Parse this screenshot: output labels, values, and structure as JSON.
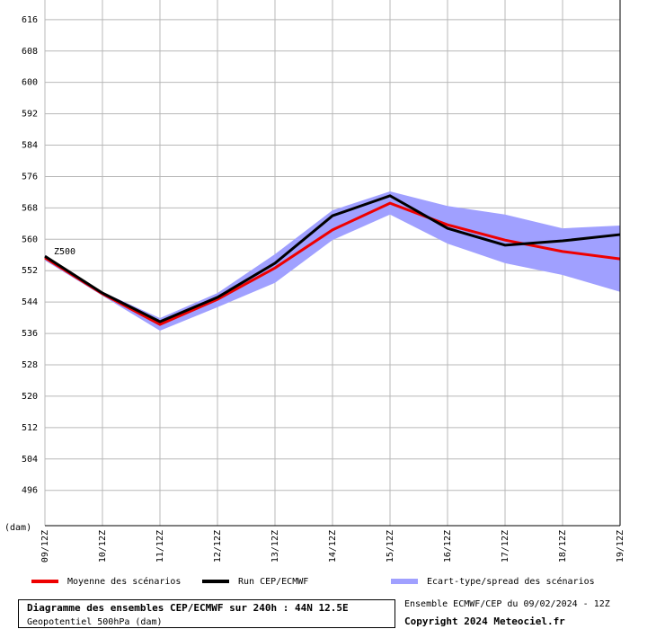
{
  "chart_data": {
    "type": "line",
    "annotation": "Z500",
    "y_unit": "(dam)",
    "categories": [
      "09/12Z",
      "10/12Z",
      "11/12Z",
      "12/12Z",
      "13/12Z",
      "14/12Z",
      "15/12Z",
      "16/12Z",
      "17/12Z",
      "18/12Z",
      "19/12Z"
    ],
    "series": [
      {
        "name": "Moyenne des scénarios",
        "color": "#ee0000",
        "values": [
          555.3,
          546.1,
          538.3,
          544.7,
          552.7,
          562.4,
          569.2,
          563.7,
          559.8,
          556.9,
          555.0
        ]
      },
      {
        "name": "Run CEP/ECMWF",
        "color": "#000000",
        "values": [
          555.7,
          546.3,
          539.0,
          545.2,
          553.9,
          566.0,
          571.1,
          562.8,
          558.5,
          559.6,
          561.2
        ]
      },
      {
        "name": "Ecart-type/spread des scénarios",
        "color": "#a0a0ff",
        "high": [
          556.0,
          546.6,
          539.9,
          546.3,
          556.2,
          567.4,
          572.2,
          568.5,
          566.3,
          562.8,
          563.5
        ],
        "low": [
          554.6,
          545.6,
          536.7,
          542.7,
          548.9,
          559.8,
          566.3,
          558.9,
          553.9,
          550.9,
          546.6
        ]
      }
    ],
    "ylim": [
      487,
      621
    ],
    "yticks": [
      496,
      504,
      512,
      520,
      528,
      536,
      544,
      552,
      560,
      568,
      576,
      584,
      592,
      600,
      608,
      616
    ],
    "grid": true,
    "title": "Diagramme des ensembles CEP/ECMWF sur 240h : 44N 12.5E",
    "subtitle": "Geopotentiel 500hPa (dam)",
    "run_info": "Ensemble ECMWF/CEP du 09/02/2024 - 12Z",
    "copyright": "Copyright 2024 Meteociel.fr"
  }
}
